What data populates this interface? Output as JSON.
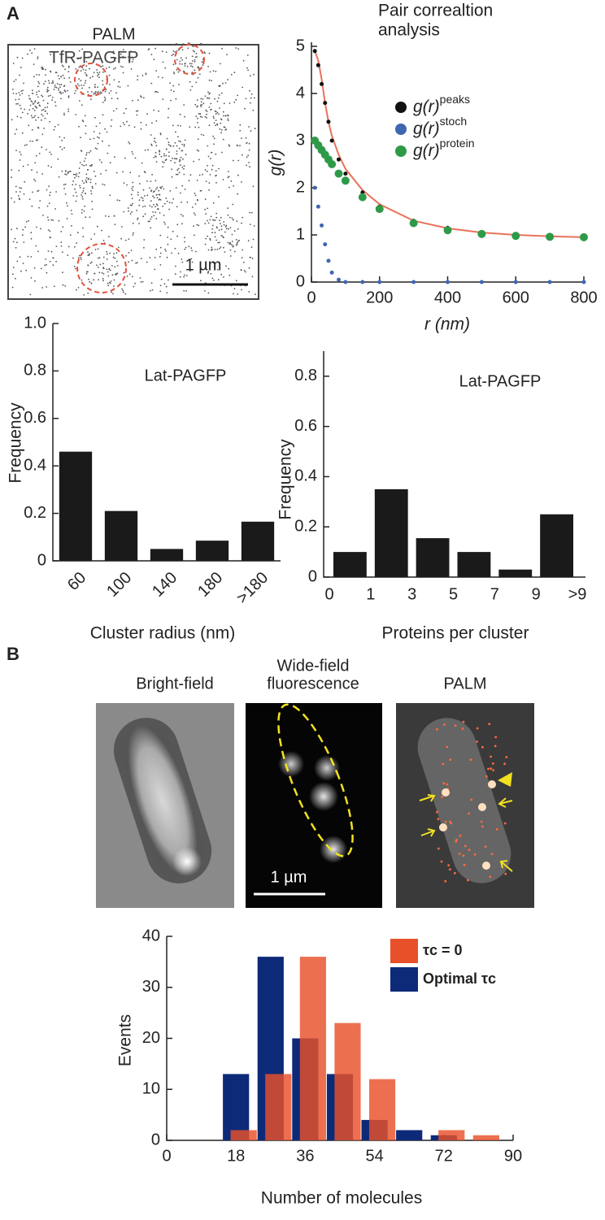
{
  "panels": {
    "a": "A",
    "b": "B"
  },
  "images": {
    "palm_a": {
      "title": "PALM",
      "label": "TfR-PAGFP",
      "scale": "1 µm"
    },
    "bright_field": {
      "title": "Bright-field"
    },
    "wide_field": {
      "title": [
        "Wide-field",
        "fluorescence"
      ],
      "scale": "1 µm"
    },
    "palm_b": {
      "title": "PALM"
    }
  },
  "chart_data": [
    {
      "type": "scatter",
      "title": [
        "Pair correaltion",
        "analysis"
      ],
      "xlabel": "r (nm)",
      "ylabel": "g(r)",
      "xlim": [
        0,
        800
      ],
      "ylim": [
        0,
        5
      ],
      "xticks": [
        0,
        200,
        400,
        600,
        800
      ],
      "yticks": [
        0,
        1,
        2,
        3,
        4,
        5
      ],
      "x": [
        10,
        20,
        30,
        40,
        50,
        60,
        80,
        100,
        150,
        200,
        300,
        400,
        500,
        600,
        700,
        800
      ],
      "series": [
        {
          "color": "#e8735a",
          "style": "line",
          "values": [
            4.9,
            4.7,
            4.3,
            3.8,
            3.4,
            3.1,
            2.7,
            2.4,
            1.95,
            1.65,
            1.3,
            1.14,
            1.05,
            1.0,
            0.97,
            0.95
          ]
        },
        {
          "name": "g(r)",
          "name_sup": "peaks",
          "color": "#111111",
          "values": [
            4.9,
            4.6,
            4.2,
            3.8,
            3.4,
            3.0,
            2.6,
            2.3,
            1.9,
            1.6,
            1.3,
            1.15,
            1.05,
            1.0,
            0.97,
            0.95
          ]
        },
        {
          "name": "g(r)",
          "name_sup": "stoch",
          "color": "#3f66b0",
          "values": [
            2.0,
            1.6,
            1.2,
            0.8,
            0.45,
            0.2,
            0.05,
            0,
            0,
            0,
            0,
            0,
            0,
            0,
            0,
            0
          ]
        },
        {
          "name": "g(r)",
          "name_sup": "protein",
          "color": "#2e9a48",
          "values": [
            3.0,
            2.9,
            2.8,
            2.7,
            2.6,
            2.5,
            2.3,
            2.15,
            1.8,
            1.55,
            1.25,
            1.1,
            1.02,
            0.98,
            0.96,
            0.95
          ]
        }
      ]
    },
    {
      "type": "bar",
      "title": "Lat-PAGFP",
      "xlabel": "Cluster radius (nm)",
      "ylabel": "Frequency",
      "categories": [
        "60",
        "100",
        "140",
        "180",
        ">180"
      ],
      "values": [
        0.46,
        0.21,
        0.05,
        0.085,
        0.165
      ],
      "color": "#1a1a1a",
      "ylim": [
        0,
        1
      ],
      "yticks": [
        0,
        0.2,
        0.4,
        0.6,
        0.8,
        {
          "value": 1,
          "label": "1.0"
        }
      ]
    },
    {
      "type": "histogram",
      "title": "Lat-PAGFP",
      "xlabel": "Proteins per cluster",
      "ylabel": "Frequency",
      "bins": [
        "0",
        "1",
        "3",
        "5",
        "7",
        "9",
        ">9"
      ],
      "values": [
        0.1,
        0.35,
        0.155,
        0.1,
        0.03,
        0.25
      ],
      "color": "#1a1a1a",
      "ylim": [
        0,
        0.9
      ],
      "yticks": [
        0,
        0.2,
        0.4,
        0.6,
        0.8
      ]
    },
    {
      "type": "bar",
      "xlabel": "Number of molecules",
      "ylabel": "Events",
      "xlim": [
        0,
        90
      ],
      "xticks": [
        0,
        18,
        36,
        54,
        72,
        90
      ],
      "ylim": [
        0,
        40
      ],
      "yticks": [
        0,
        10,
        20,
        30,
        40
      ],
      "series": [
        {
          "name": "Optimal τc",
          "color": "#0d2a78",
          "x": [
            18,
            27,
            36,
            45,
            54,
            63,
            72
          ],
          "values": [
            13,
            36,
            20,
            13,
            4,
            2,
            1
          ]
        },
        {
          "name": "τc = 0",
          "color": "#e8502a",
          "x": [
            20,
            29,
            38,
            47,
            56,
            74,
            83
          ],
          "values": [
            2,
            13,
            36,
            23,
            12,
            2,
            1
          ]
        }
      ]
    }
  ]
}
